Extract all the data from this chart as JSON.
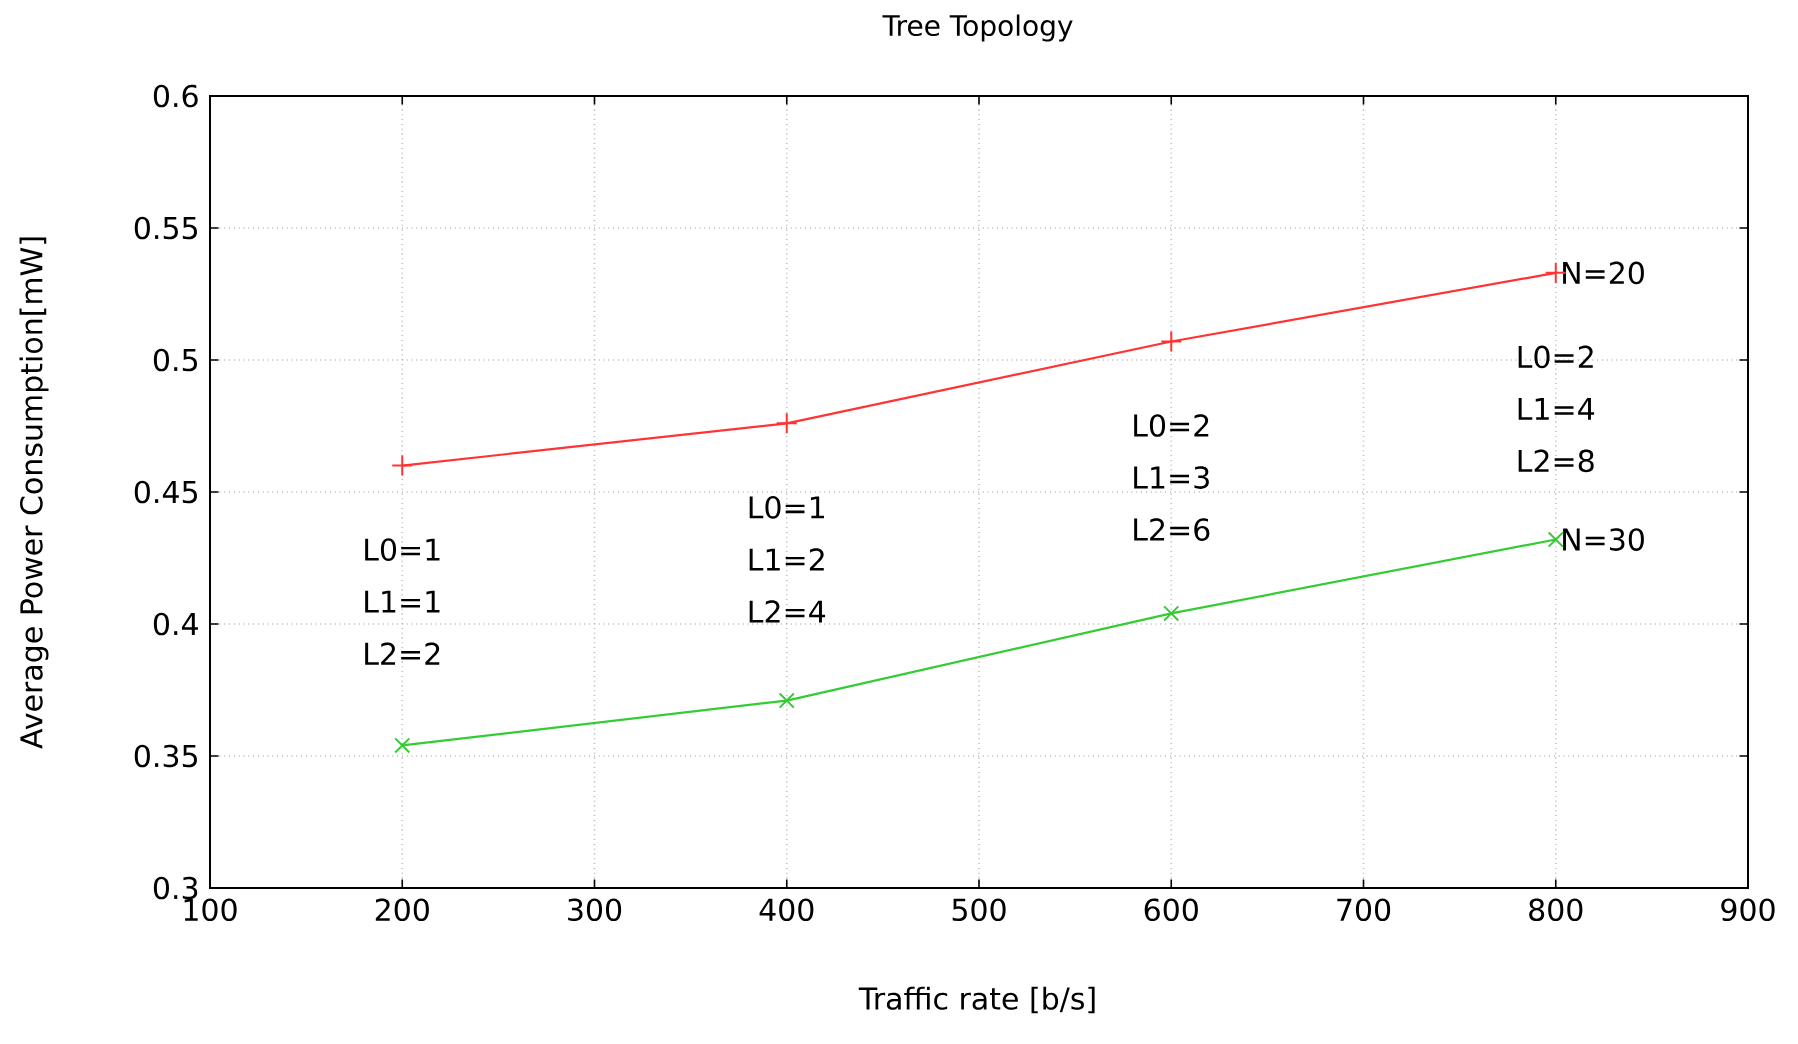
{
  "chart_data": {
    "type": "line",
    "title": "Tree Topology",
    "xlabel": "Traffic rate [b/s]",
    "ylabel": "Average Power Consumption[mW]",
    "xlim": [
      100,
      900
    ],
    "xticks": [
      100,
      200,
      300,
      400,
      500,
      600,
      700,
      800,
      900
    ],
    "ylim": [
      0.3,
      0.6
    ],
    "yticks": [
      0.3,
      0.35,
      0.4,
      0.45,
      0.5,
      0.55,
      0.6
    ],
    "grid": true,
    "legend": false,
    "line_style": "solid",
    "series": [
      {
        "name": "N=20",
        "color": "#ff3333",
        "marker": "plus",
        "x": [
          200,
          400,
          600,
          800
        ],
        "values": [
          0.46,
          0.476,
          0.507,
          0.533
        ]
      },
      {
        "name": "N=30",
        "color": "#33cc33",
        "marker": "cross",
        "x": [
          200,
          400,
          600,
          800
        ],
        "values": [
          0.354,
          0.371,
          0.404,
          0.432
        ]
      }
    ],
    "annotations": [
      "L0=1",
      "L1=1",
      "L2=2",
      "L0=1",
      "L1=2",
      "L2=4",
      "L0=2",
      "L1=3",
      "L2=6",
      "L0=2",
      "L1=4",
      "L2=8"
    ]
  }
}
